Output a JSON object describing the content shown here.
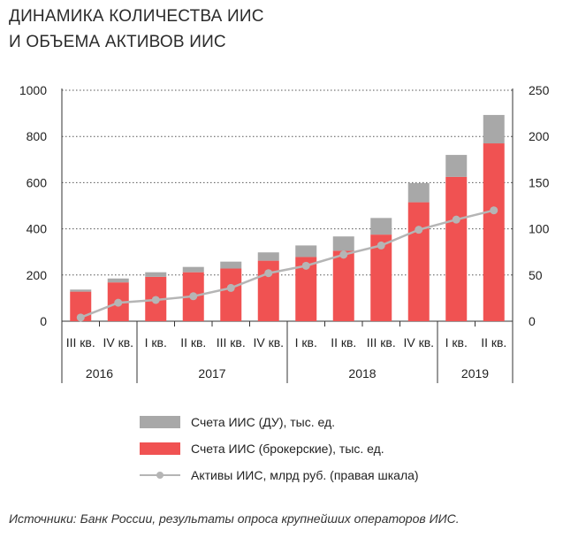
{
  "title_lines": [
    "ДИНАМИКА КОЛИЧЕСТВА ИИС",
    "И ОБЪЕМА АКТИВОВ ИИС"
  ],
  "colors": {
    "brokerage": "#f05252",
    "du": "#a8a8a8",
    "assets": "#b5b5b5",
    "text": "#222222"
  },
  "chart_data": {
    "type": "bar",
    "stacked": true,
    "categories": [
      "III кв.",
      "IV кв.",
      "I кв.",
      "II кв.",
      "III кв.",
      "IV кв.",
      "I кв.",
      "II кв.",
      "III кв.",
      "IV кв.",
      "I кв.",
      "II кв."
    ],
    "year_groups": [
      {
        "label": "2016",
        "count": 2
      },
      {
        "label": "2017",
        "count": 4
      },
      {
        "label": "2018",
        "count": 4
      },
      {
        "label": "2019",
        "count": 2
      }
    ],
    "series": [
      {
        "name": "Счета ИИС (брокерские), тыс. ед.",
        "axis": "left",
        "kind": "bar",
        "values": [
          128,
          168,
          192,
          212,
          228,
          262,
          278,
          305,
          375,
          515,
          625,
          770
        ]
      },
      {
        "name": "Счета ИИС (ДУ), тыс. ед.",
        "axis": "left",
        "kind": "bar",
        "values": [
          9,
          17,
          20,
          23,
          30,
          36,
          50,
          62,
          72,
          83,
          95,
          123
        ]
      },
      {
        "name": "Активы ИИС, млрд руб. (правая шкала)",
        "axis": "right",
        "kind": "line",
        "values": [
          4,
          20,
          23,
          27,
          36,
          52,
          60,
          72,
          82,
          99,
          110,
          120
        ]
      }
    ],
    "legend": [
      "Счета ИИС (ДУ), тыс. ед.",
      "Счета ИИС (брокерские), тыс. ед.",
      "Активы ИИС, млрд руб. (правая шкала)"
    ],
    "ylim_left": [
      0,
      1000
    ],
    "yticks_left": [
      "0",
      "200",
      "400",
      "600",
      "800",
      "1000"
    ],
    "ylim_right": [
      0,
      250
    ],
    "yticks_right": [
      "0",
      "50",
      "100",
      "150",
      "200",
      "250"
    ],
    "grid": true,
    "legend_position": "bottom"
  },
  "source": "Источники: Банк России, результаты опроса крупнейших операторов ИИС."
}
